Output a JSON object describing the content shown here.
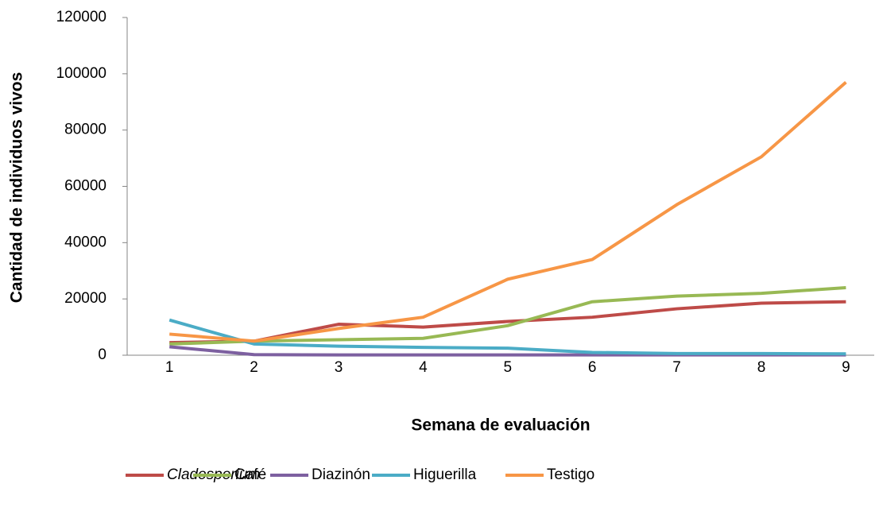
{
  "chart_data": {
    "type": "line",
    "xlabel": "Semana de evaluación",
    "ylabel": "Cantidad de individuos vivos",
    "categories": [
      "1",
      "2",
      "3",
      "4",
      "5",
      "6",
      "7",
      "8",
      "9"
    ],
    "series": [
      {
        "name": "Cladosporium",
        "color": "#be4b48",
        "values": [
          4500,
          5000,
          11000,
          10000,
          12000,
          13500,
          16500,
          18500,
          19000
        ]
      },
      {
        "name": "Café",
        "color": "#98b954",
        "values": [
          4000,
          5000,
          5500,
          6000,
          10500,
          19000,
          21000,
          22000,
          24000
        ]
      },
      {
        "name": "Diazinón",
        "color": "#7d60a0",
        "values": [
          3000,
          200,
          100,
          100,
          100,
          100,
          100,
          100,
          100
        ]
      },
      {
        "name": "Higuerilla",
        "color": "#4bacc6",
        "values": [
          12500,
          4000,
          3200,
          2800,
          2500,
          1000,
          600,
          600,
          500
        ]
      },
      {
        "name": "Testigo",
        "color": "#f79646",
        "values": [
          7500,
          5000,
          9500,
          13500,
          27000,
          34000,
          53500,
          70500,
          97000
        ]
      }
    ],
    "ylim": [
      0,
      120000
    ],
    "yticks": [
      0,
      20000,
      40000,
      60000,
      80000,
      100000,
      120000
    ],
    "legend": "bottom"
  }
}
